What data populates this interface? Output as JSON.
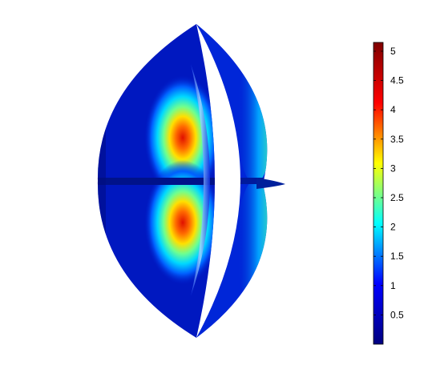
{
  "colorbar": {
    "ticks": [
      {
        "label": "5",
        "value": 5
      },
      {
        "label": "4.5",
        "value": 4.5
      },
      {
        "label": "4",
        "value": 4
      },
      {
        "label": "3.5",
        "value": 3.5
      },
      {
        "label": "3",
        "value": 3
      },
      {
        "label": "2.5",
        "value": 2.5
      },
      {
        "label": "2",
        "value": 2
      },
      {
        "label": "1.5",
        "value": 1.5
      },
      {
        "label": "1",
        "value": 1
      },
      {
        "label": "0.5",
        "value": 0.5
      }
    ],
    "range": [
      0,
      5.15
    ],
    "colormap": [
      "#00007f",
      "#0000ff",
      "#00ffff",
      "#ffff00",
      "#ff0000",
      "#7f0000"
    ]
  }
}
